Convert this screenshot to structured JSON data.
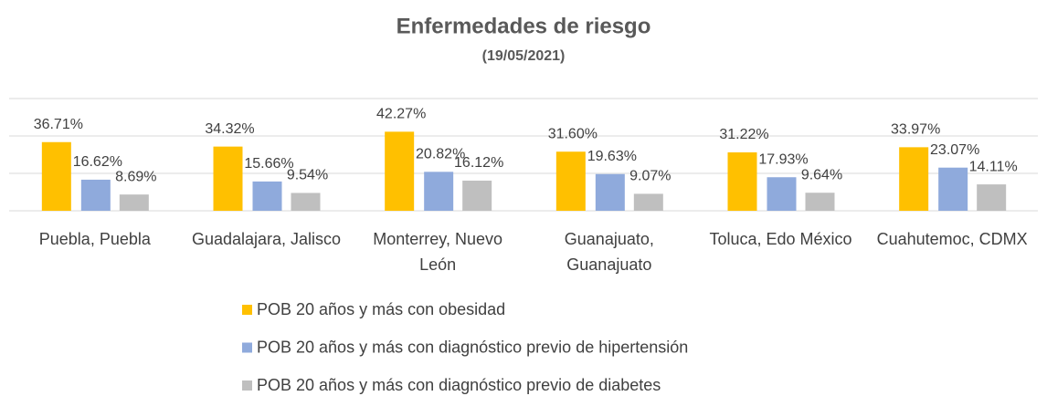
{
  "chart_data": {
    "type": "bar",
    "title": "Enfermedades de riesgo",
    "subtitle": "(19/05/2021)",
    "categories": [
      "Puebla, Puebla",
      "Guadalajara, Jalisco",
      "Monterrey, Nuevo León",
      "Guanajuato, Guanajuato",
      "Toluca, Edo México",
      "Cuahutemoc, CDMX"
    ],
    "series": [
      {
        "name": "POB 20 años y más con obesidad",
        "color": "#ffc000",
        "values": [
          36.71,
          34.32,
          42.27,
          31.6,
          31.22,
          33.97
        ],
        "value_labels": [
          "36.71%",
          "34.32%",
          "42.27%",
          "31.60%",
          "31.22%",
          "33.97%"
        ]
      },
      {
        "name": "POB 20 años y más con diagnóstico previo de hipertensión",
        "color": "#8faadc",
        "values": [
          16.62,
          15.66,
          20.82,
          19.63,
          17.93,
          23.07
        ],
        "value_labels": [
          "16.62%",
          "15.66%",
          "20.82%",
          "19.63%",
          "17.93%",
          "23.07%"
        ]
      },
      {
        "name": "POB 20 años y más con diagnóstico previo de diabetes",
        "color": "#bfbfbf",
        "values": [
          8.69,
          9.54,
          16.12,
          9.07,
          9.64,
          14.11
        ],
        "value_labels": [
          "8.69%",
          "9.54%",
          "16.12%",
          "9.07%",
          "9.64%",
          "14.11%"
        ]
      }
    ],
    "ylim": [
      0,
      60
    ],
    "yticks": [
      0,
      20,
      40,
      60
    ],
    "grid": true,
    "legend": "bottom"
  }
}
